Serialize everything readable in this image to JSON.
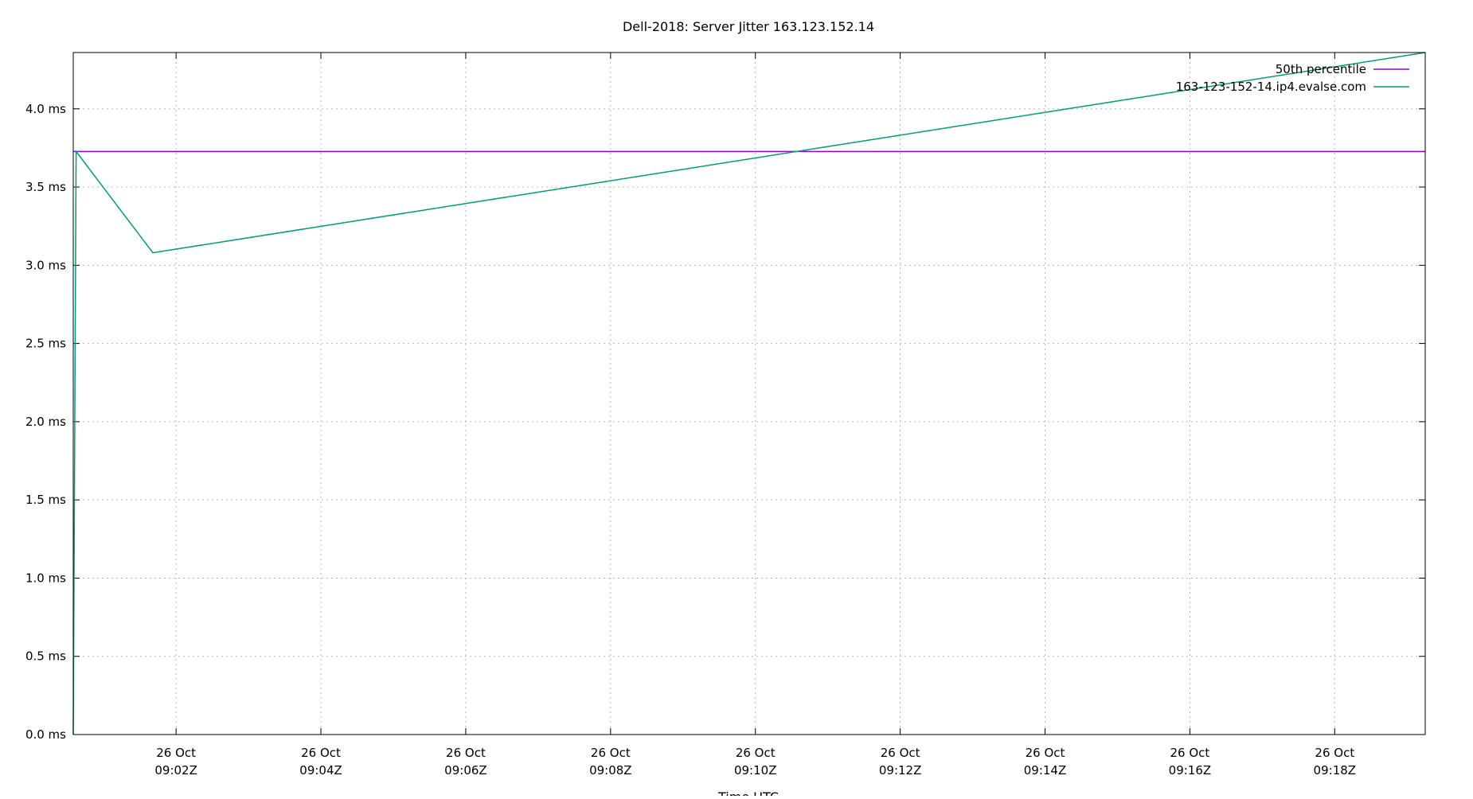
{
  "chart_data": {
    "type": "line",
    "title": "Dell-2018: Server Jitter 163.123.152.14",
    "xlabel": "Time UTC",
    "ylabel": "",
    "x_unit": "minutes past 09:00Z, 26 Oct (UTC)",
    "xlim": [
      0.58,
      19.25
    ],
    "ylim": [
      0.0,
      4.36
    ],
    "y_ticks": [
      {
        "value": 0.0,
        "label": "0.0 ms"
      },
      {
        "value": 0.5,
        "label": "0.5 ms"
      },
      {
        "value": 1.0,
        "label": "1.0 ms"
      },
      {
        "value": 1.5,
        "label": "1.5 ms"
      },
      {
        "value": 2.0,
        "label": "2.0 ms"
      },
      {
        "value": 2.5,
        "label": "2.5 ms"
      },
      {
        "value": 3.0,
        "label": "3.0 ms"
      },
      {
        "value": 3.5,
        "label": "3.5 ms"
      },
      {
        "value": 4.0,
        "label": "4.0 ms"
      }
    ],
    "x_ticks": [
      {
        "value": 2,
        "date": "26 Oct",
        "time": "09:02Z"
      },
      {
        "value": 4,
        "date": "26 Oct",
        "time": "09:04Z"
      },
      {
        "value": 6,
        "date": "26 Oct",
        "time": "09:06Z"
      },
      {
        "value": 8,
        "date": "26 Oct",
        "time": "09:08Z"
      },
      {
        "value": 10,
        "date": "26 Oct",
        "time": "09:10Z"
      },
      {
        "value": 12,
        "date": "26 Oct",
        "time": "09:12Z"
      },
      {
        "value": 14,
        "date": "26 Oct",
        "time": "09:14Z"
      },
      {
        "value": 16,
        "date": "26 Oct",
        "time": "09:16Z"
      },
      {
        "value": 18,
        "date": "26 Oct",
        "time": "09:18Z"
      }
    ],
    "grid": true,
    "legend_position": "top-right",
    "series": [
      {
        "name": "50th percentile",
        "color": "#9400d3",
        "x": [
          0.58,
          19.25
        ],
        "y": [
          3.727,
          3.727
        ]
      },
      {
        "name": "163-123-152-14.ip4.evalse.com",
        "color": "#009e73",
        "x": [
          0.58,
          0.62,
          1.68,
          19.25
        ],
        "y": [
          0.0,
          3.727,
          3.08,
          4.36
        ]
      }
    ]
  }
}
